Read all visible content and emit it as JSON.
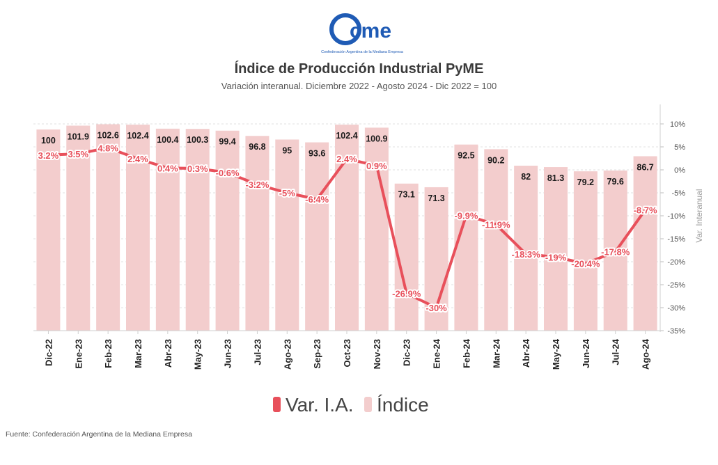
{
  "brand": {
    "logo_text": "cme",
    "tagline": "Confederación Argentina de la Mediana Empresa",
    "color": "#1f5bb5"
  },
  "header": {
    "title": "Índice de Producción Industrial PyME",
    "subtitle": "Variación interanual. Diciembre 2022 - Agosto 2024 - Dic 2022 = 100"
  },
  "footer": {
    "source": "Fuente: Confederación Argentina de la Mediana Empresa"
  },
  "chart_data": {
    "type": "bar",
    "categories": [
      "Dic-22",
      "Ene-23",
      "Feb-23",
      "Mar-23",
      "Abr-23",
      "May-23",
      "Jun-23",
      "Jul-23",
      "Ago-23",
      "Sep-23",
      "Oct-23",
      "Nov-23",
      "Dic-23",
      "Ene-24",
      "Feb-24",
      "Mar-24",
      "Abr-24",
      "May-24",
      "Jun-24",
      "Jul-24",
      "Ago-24"
    ],
    "series": [
      {
        "name": "Índice",
        "type": "bar",
        "color": "#f3cdcd",
        "values": [
          100,
          101.9,
          102.6,
          102.4,
          100.4,
          100.3,
          99.4,
          96.8,
          95,
          93.6,
          102.4,
          100.9,
          73.1,
          71.3,
          92.5,
          90.2,
          82,
          81.3,
          79.2,
          79.6,
          86.7
        ],
        "labels": [
          "100",
          "101.9",
          "102.6",
          "102.4",
          "100.4",
          "100.3",
          "99.4",
          "96.8",
          "95",
          "93.6",
          "102.4",
          "100.9",
          "73.1",
          "71.3",
          "92.5",
          "90.2",
          "82",
          "81.3",
          "79.2",
          "79.6",
          "86.7"
        ]
      },
      {
        "name": "Var. I.A.",
        "type": "line",
        "axis": "right",
        "color": "#e8505b",
        "values": [
          3.2,
          3.5,
          4.8,
          2.4,
          0.4,
          0.3,
          -0.6,
          -3.2,
          -5,
          -6.4,
          2.4,
          0.9,
          -26.9,
          -30,
          -9.9,
          -11.9,
          -18.3,
          -19,
          -20.4,
          -17.8,
          -8.7
        ],
        "labels": [
          "3.2%",
          "3.5%",
          "4.8%",
          "2.4%",
          "0.4%",
          "0.3%",
          "-0.6%",
          "-3.2%",
          "-5%",
          "-6.4%",
          "2.4%",
          "0.9%",
          "-26.9%",
          "-30%",
          "-9.9%",
          "-11.9%",
          "-18.3%",
          "-19%",
          "-20.4%",
          "-17.8%",
          "-8.7%"
        ]
      }
    ],
    "y2label": "Var. Interanual",
    "y2lim": [
      -35,
      10
    ],
    "y2ticks": [
      "10%",
      "5%",
      "0%",
      "-5%",
      "-10%",
      "-15%",
      "-20%",
      "-25%",
      "-30%",
      "-35%"
    ],
    "legend": [
      "Var. I.A.",
      "Índice"
    ],
    "legend_position": "bottom",
    "grid": true
  }
}
